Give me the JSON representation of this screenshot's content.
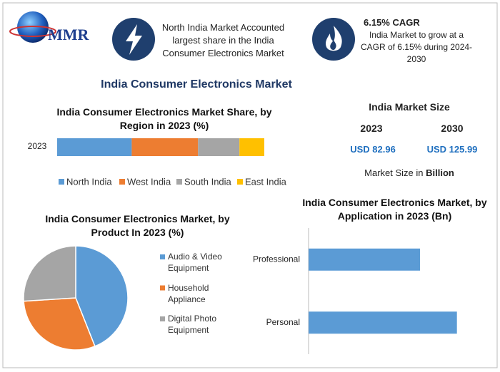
{
  "header": {
    "logo": "MMR",
    "highlight_1": "North India Market Accounted largest share in the India Consumer Electronics Market",
    "highlight_2_title": "6.15% CAGR",
    "highlight_2_text": "India Market to grow at a CAGR of 6.15% during 2024-2030"
  },
  "title": "India Consumer Electronics Market",
  "market_size": {
    "title": "India Market Size",
    "years": [
      "2023",
      "2030"
    ],
    "values": [
      "USD 82.96",
      "USD 125.99"
    ],
    "note": "Market Size in",
    "note_unit": "Billion"
  },
  "chart_data": [
    {
      "type": "bar",
      "stacked": true,
      "orientation": "horizontal",
      "title": "India Consumer Electronics Market Share, by Region in 2023 (%)",
      "categories": [
        "2023"
      ],
      "xlim": [
        0,
        100
      ],
      "series": [
        {
          "name": "North India",
          "color": "#5b9bd5",
          "values": [
            36
          ]
        },
        {
          "name": "West India",
          "color": "#ed7d31",
          "values": [
            32
          ]
        },
        {
          "name": "South India",
          "color": "#a5a5a5",
          "values": [
            20
          ]
        },
        {
          "name": "East India",
          "color": "#ffc000",
          "values": [
            12
          ]
        }
      ]
    },
    {
      "type": "pie",
      "title": "India Consumer Electronics Market, by Product In 2023 (%)",
      "categories": [
        "Audio & Video Equipment",
        "Household Appliance",
        "Digital Photo Equipment"
      ],
      "values": [
        44,
        30,
        26
      ],
      "colors": [
        "#5b9bd5",
        "#ed7d31",
        "#a5a5a5"
      ]
    },
    {
      "type": "bar",
      "stacked": false,
      "orientation": "horizontal",
      "title": "India Consumer Electronics Market, by Application in 2023 (Bn)",
      "categories": [
        "Professional",
        "Personal"
      ],
      "values": [
        35.6,
        47.4
      ],
      "color": "#5b9bd5",
      "xlim": [
        0,
        55
      ]
    }
  ]
}
